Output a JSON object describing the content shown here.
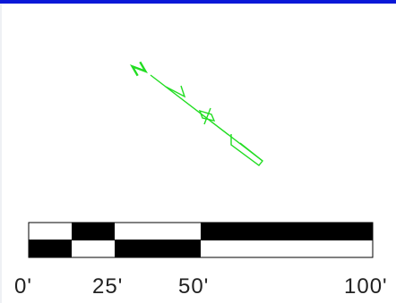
{
  "north_arrow": {
    "icon": "north-arrow-icon",
    "letter": "N",
    "color": "#22dd22"
  },
  "scale_bar": {
    "icon": "checkered-scale-bar",
    "fill_color": "#000000",
    "labels": [
      "0'",
      "25'",
      "50'",
      "100'"
    ]
  },
  "colors": {
    "top_rule": "#0a18d8",
    "background": "#ffffff"
  }
}
